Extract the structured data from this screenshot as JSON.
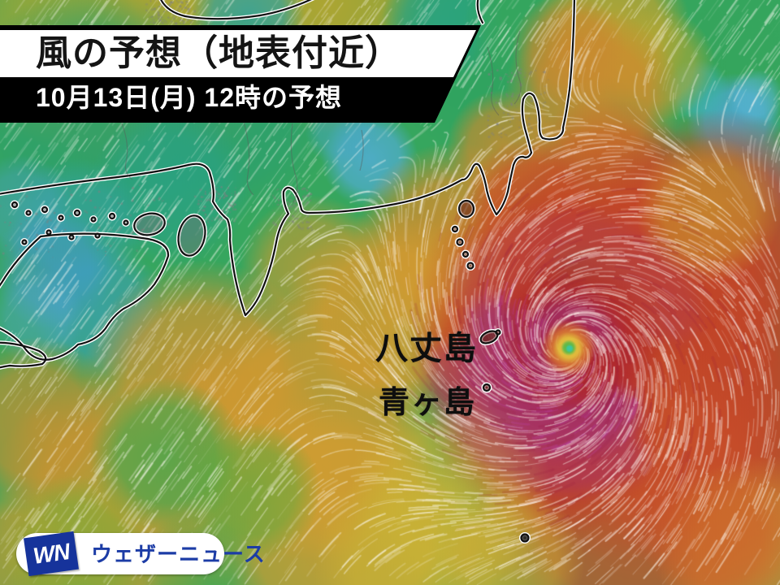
{
  "header": {
    "title": "風の予想（地表付近）",
    "subtitle": "10月13日(月) 12時の予想",
    "title_band_bg": "#ffffff",
    "title_band_fg": "#141414",
    "subtitle_band_bg": "#000000",
    "subtitle_band_fg": "#ffffff"
  },
  "map": {
    "island_labels": [
      {
        "name": "hachijojima",
        "text": "八丈島"
      },
      {
        "name": "aogashima",
        "text": "青ヶ島"
      }
    ]
  },
  "branding": {
    "logo_monogram": "WN",
    "logo_text": "ウェザーニュース",
    "brand_blue": "#1c3ca6"
  },
  "colors": {
    "wind_calm_blue": "#4fa8d8",
    "wind_light_teal": "#2aa285",
    "wind_moderate_green": "#36a65e",
    "wind_fresh_olive": "#b3a530",
    "wind_strong_orange": "#d6952f",
    "wind_very_strong_red": "#c43a24",
    "wind_violent_purple": "#96309a",
    "typhoon_eye_yellow": "#e3c83e",
    "typhoon_eye_green": "#4db84a",
    "typhoon_eye_teal": "#39c9a8",
    "coastline_black": "#111111",
    "coastline_halo_white": "#ffffff"
  }
}
